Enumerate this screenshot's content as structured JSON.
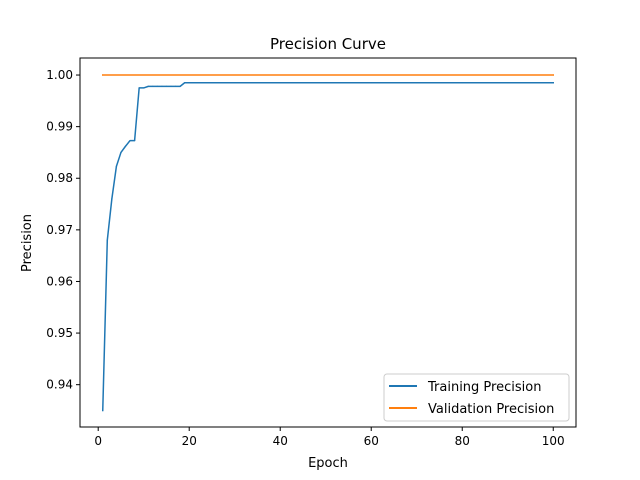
{
  "chart_data": {
    "type": "line",
    "title": "Precision Curve",
    "xlabel": "Epoch",
    "ylabel": "Precision",
    "xlim": [
      -4.0,
      105.0
    ],
    "ylim": [
      0.9318,
      1.0033
    ],
    "x_ticks": [
      0,
      20,
      40,
      60,
      80,
      100
    ],
    "x_tick_labels": [
      "0",
      "20",
      "40",
      "60",
      "80",
      "100"
    ],
    "y_ticks": [
      0.94,
      0.95,
      0.96,
      0.97,
      0.98,
      0.99,
      1.0
    ],
    "y_tick_labels": [
      "0.94",
      "0.95",
      "0.96",
      "0.97",
      "0.98",
      "0.99",
      "1.00"
    ],
    "grid": false,
    "legend_position": "lower-right",
    "series": [
      {
        "name": "Training Precision",
        "color": "#1f77b4",
        "x": [
          1,
          2,
          3,
          4,
          5,
          6,
          7,
          8,
          9,
          10,
          11,
          12,
          13,
          14,
          15,
          16,
          17,
          18,
          19,
          20,
          30,
          40,
          50,
          60,
          70,
          80,
          90,
          100
        ],
        "y": [
          0.935,
          0.968,
          0.976,
          0.9823,
          0.985,
          0.9862,
          0.9873,
          0.9873,
          0.9975,
          0.9975,
          0.9978,
          0.9978,
          0.9978,
          0.9978,
          0.9978,
          0.9978,
          0.9978,
          0.9978,
          0.9985,
          0.9985,
          0.9985,
          0.9985,
          0.9985,
          0.9985,
          0.9985,
          0.9985,
          0.9985,
          0.9985
        ]
      },
      {
        "name": "Validation Precision",
        "color": "#ff7f0e",
        "x": [
          1,
          100
        ],
        "y": [
          1.0,
          1.0
        ]
      }
    ]
  }
}
